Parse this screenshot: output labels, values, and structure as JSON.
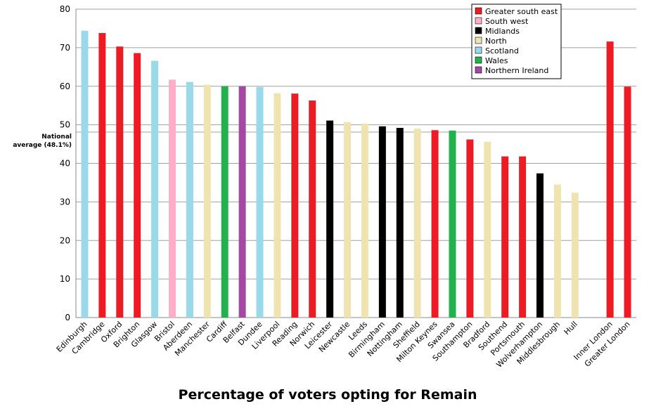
{
  "chart_data": {
    "type": "bar",
    "title": "Percentage of voters opting for Remain",
    "xlabel": "",
    "ylabel": "",
    "ylim": [
      0,
      80
    ],
    "yticks": [
      0,
      10,
      20,
      30,
      40,
      50,
      60,
      70,
      80
    ],
    "grid": true,
    "legend_position": "top-right",
    "reference_line": {
      "value": 48.1,
      "label_line1": "National",
      "label_line2": "average (48.1%)"
    },
    "regions": [
      {
        "name": "Greater south east",
        "color": "#ed1c24"
      },
      {
        "name": "South west",
        "color": "#ffaec9"
      },
      {
        "name": "Midlands",
        "color": "#000000"
      },
      {
        "name": "North",
        "color": "#efe4b0"
      },
      {
        "name": "Scotland",
        "color": "#99d9ea"
      },
      {
        "name": "Wales",
        "color": "#22b14c"
      },
      {
        "name": "Northern Ireland",
        "color": "#a349a4"
      }
    ],
    "categories": [
      "Edinburgh",
      "Cambridge",
      "Oxford",
      "Brighton",
      "Glasgow",
      "Bristol",
      "Aberdeen",
      "Manchester",
      "Cardiff",
      "Belfast",
      "Dundee",
      "Liverpool",
      "Reading",
      "Norwich",
      "Leicester",
      "Newcastle",
      "Leeds",
      "Birmingham",
      "Nottingham",
      "Sheffield",
      "Milton Keynes",
      "Swansea",
      "Southampton",
      "Bradford",
      "Southend",
      "Portsmouth",
      "Wolverhampton",
      "Middlesbrough",
      "Hull",
      "",
      "Inner London",
      "Greater London"
    ],
    "values": [
      74.4,
      73.8,
      70.3,
      68.6,
      66.6,
      61.7,
      61.1,
      60.4,
      60.0,
      60.0,
      59.8,
      58.2,
      58.1,
      56.3,
      51.1,
      50.7,
      50.3,
      49.6,
      49.2,
      49.0,
      48.6,
      48.5,
      46.2,
      45.6,
      41.8,
      41.8,
      37.4,
      34.5,
      32.4,
      null,
      71.6,
      59.9
    ],
    "region_of": [
      "Scotland",
      "Greater south east",
      "Greater south east",
      "Greater south east",
      "Scotland",
      "South west",
      "Scotland",
      "North",
      "Wales",
      "Northern Ireland",
      "Scotland",
      "North",
      "Greater south east",
      "Greater south east",
      "Midlands",
      "North",
      "North",
      "Midlands",
      "Midlands",
      "North",
      "Greater south east",
      "Wales",
      "Greater south east",
      "North",
      "Greater south east",
      "Greater south east",
      "Midlands",
      "North",
      "North",
      null,
      "Greater south east",
      "Greater south east"
    ]
  }
}
